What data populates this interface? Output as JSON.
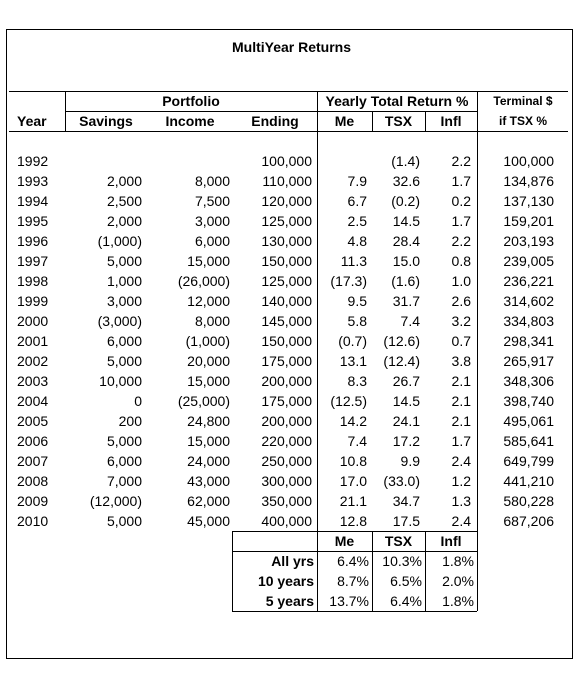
{
  "title": "MultiYear Returns",
  "headers": {
    "portfolio": "Portfolio",
    "yearly": "Yearly Total Return %",
    "terminal_line1": "Terminal $",
    "terminal_line2": "if TSX %",
    "year": "Year",
    "savings": "Savings",
    "income": "Income",
    "ending": "Ending",
    "me": "Me",
    "tsx": "TSX",
    "infl": "Infl"
  },
  "rows": [
    {
      "year": "1992",
      "savings": "",
      "income": "",
      "ending": "100,000",
      "me": "",
      "tsx": "(1.4)",
      "infl": "2.2",
      "terminal": "100,000"
    },
    {
      "year": "1993",
      "savings": "2,000",
      "income": "8,000",
      "ending": "110,000",
      "me": "7.9",
      "tsx": "32.6",
      "infl": "1.7",
      "terminal": "134,876"
    },
    {
      "year": "1994",
      "savings": "2,500",
      "income": "7,500",
      "ending": "120,000",
      "me": "6.7",
      "tsx": "(0.2)",
      "infl": "0.2",
      "terminal": "137,130"
    },
    {
      "year": "1995",
      "savings": "2,000",
      "income": "3,000",
      "ending": "125,000",
      "me": "2.5",
      "tsx": "14.5",
      "infl": "1.7",
      "terminal": "159,201"
    },
    {
      "year": "1996",
      "savings": "(1,000)",
      "income": "6,000",
      "ending": "130,000",
      "me": "4.8",
      "tsx": "28.4",
      "infl": "2.2",
      "terminal": "203,193"
    },
    {
      "year": "1997",
      "savings": "5,000",
      "income": "15,000",
      "ending": "150,000",
      "me": "11.3",
      "tsx": "15.0",
      "infl": "0.8",
      "terminal": "239,005"
    },
    {
      "year": "1998",
      "savings": "1,000",
      "income": "(26,000)",
      "ending": "125,000",
      "me": "(17.3)",
      "tsx": "(1.6)",
      "infl": "1.0",
      "terminal": "236,221"
    },
    {
      "year": "1999",
      "savings": "3,000",
      "income": "12,000",
      "ending": "140,000",
      "me": "9.5",
      "tsx": "31.7",
      "infl": "2.6",
      "terminal": "314,602"
    },
    {
      "year": "2000",
      "savings": "(3,000)",
      "income": "8,000",
      "ending": "145,000",
      "me": "5.8",
      "tsx": "7.4",
      "infl": "3.2",
      "terminal": "334,803"
    },
    {
      "year": "2001",
      "savings": "6,000",
      "income": "(1,000)",
      "ending": "150,000",
      "me": "(0.7)",
      "tsx": "(12.6)",
      "infl": "0.7",
      "terminal": "298,341"
    },
    {
      "year": "2002",
      "savings": "5,000",
      "income": "20,000",
      "ending": "175,000",
      "me": "13.1",
      "tsx": "(12.4)",
      "infl": "3.8",
      "terminal": "265,917"
    },
    {
      "year": "2003",
      "savings": "10,000",
      "income": "15,000",
      "ending": "200,000",
      "me": "8.3",
      "tsx": "26.7",
      "infl": "2.1",
      "terminal": "348,306"
    },
    {
      "year": "2004",
      "savings": "0",
      "income": "(25,000)",
      "ending": "175,000",
      "me": "(12.5)",
      "tsx": "14.5",
      "infl": "2.1",
      "terminal": "398,740"
    },
    {
      "year": "2005",
      "savings": "200",
      "income": "24,800",
      "ending": "200,000",
      "me": "14.2",
      "tsx": "24.1",
      "infl": "2.1",
      "terminal": "495,061"
    },
    {
      "year": "2006",
      "savings": "5,000",
      "income": "15,000",
      "ending": "220,000",
      "me": "7.4",
      "tsx": "17.2",
      "infl": "1.7",
      "terminal": "585,641"
    },
    {
      "year": "2007",
      "savings": "6,000",
      "income": "24,000",
      "ending": "250,000",
      "me": "10.8",
      "tsx": "9.9",
      "infl": "2.4",
      "terminal": "649,799"
    },
    {
      "year": "2008",
      "savings": "7,000",
      "income": "43,000",
      "ending": "300,000",
      "me": "17.0",
      "tsx": "(33.0)",
      "infl": "1.2",
      "terminal": "441,210"
    },
    {
      "year": "2009",
      "savings": "(12,000)",
      "income": "62,000",
      "ending": "350,000",
      "me": "21.1",
      "tsx": "34.7",
      "infl": "1.3",
      "terminal": "580,228"
    },
    {
      "year": "2010",
      "savings": "5,000",
      "income": "45,000",
      "ending": "400,000",
      "me": "12.8",
      "tsx": "17.5",
      "infl": "2.4",
      "terminal": "687,206"
    }
  ],
  "summary": {
    "headers": {
      "me": "Me",
      "tsx": "TSX",
      "infl": "Infl"
    },
    "rows": [
      {
        "label": "All yrs",
        "me": "6.4%",
        "tsx": "10.3%",
        "infl": "1.8%"
      },
      {
        "label": "10 years",
        "me": "8.7%",
        "tsx": "6.5%",
        "infl": "2.0%"
      },
      {
        "label": "5 years",
        "me": "13.7%",
        "tsx": "6.4%",
        "infl": "1.8%"
      }
    ]
  }
}
